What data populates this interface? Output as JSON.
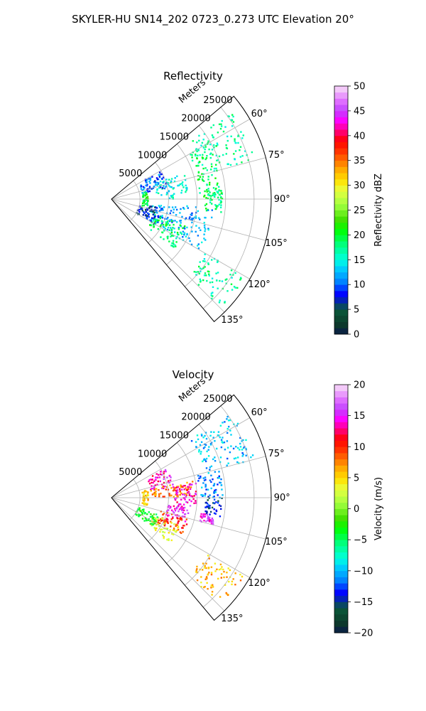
{
  "figure": {
    "suptitle": "SKYLER-HU  SN14_202  0723_0.273 UTC Elevation 20°"
  },
  "chart_data": [
    {
      "type": "polar-sector",
      "title": "Reflectivity",
      "radial_label": "Meters",
      "theta_range_deg": [
        50,
        140
      ],
      "r_range_m": [
        0,
        28000
      ],
      "radial_ticks": [
        5000,
        10000,
        15000,
        20000,
        25000
      ],
      "radial_tick_labels": [
        "5000",
        "10000",
        "15000",
        "20000",
        "25000"
      ],
      "angle_ticks_deg": [
        60,
        75,
        90,
        105,
        120,
        135
      ],
      "angle_tick_labels": [
        "60°",
        "75°",
        "90°",
        "105°",
        "120°",
        "135°"
      ],
      "grid": true,
      "colorbar": {
        "label": "Reflectivity dBZ",
        "range": [
          0,
          50
        ],
        "ticks": [
          0,
          5,
          10,
          15,
          20,
          25,
          30,
          35,
          40,
          45,
          50
        ],
        "tick_labels": [
          "0",
          "5",
          "10",
          "15",
          "20",
          "25",
          "30",
          "35",
          "40",
          "45",
          "50"
        ]
      },
      "echo_regions": [
        {
          "az": [
            54,
            75
          ],
          "r": [
            17000,
            26000
          ],
          "value": 17
        },
        {
          "az": [
            60,
            90
          ],
          "r": [
            15500,
            19500
          ],
          "value": 19
        },
        {
          "az": [
            85,
            98
          ],
          "r": [
            16000,
            19500
          ],
          "value": 18
        },
        {
          "az": [
            70,
            90
          ],
          "r": [
            8000,
            13500
          ],
          "value": 15
        },
        {
          "az": [
            60,
            80
          ],
          "r": [
            5500,
            10000
          ],
          "value": 10
        },
        {
          "az": [
            95,
            120
          ],
          "r": [
            7000,
            18000
          ],
          "value": 12
        },
        {
          "az": [
            110,
            128
          ],
          "r": [
            8000,
            14000
          ],
          "value": 19
        },
        {
          "az": [
            100,
            120
          ],
          "r": [
            5000,
            9000
          ],
          "value": 7
        },
        {
          "az": [
            78,
            102
          ],
          "r": [
            5500,
            6500
          ],
          "value": 20
        },
        {
          "az": [
            120,
            135
          ],
          "r": [
            19000,
            27000
          ],
          "value": 17
        }
      ]
    },
    {
      "type": "polar-sector",
      "title": "Velocity",
      "radial_label": "Meters",
      "theta_range_deg": [
        50,
        140
      ],
      "r_range_m": [
        0,
        28000
      ],
      "radial_ticks": [
        5000,
        10000,
        15000,
        20000,
        25000
      ],
      "radial_tick_labels": [
        "5000",
        "10000",
        "15000",
        "20000",
        "25000"
      ],
      "angle_ticks_deg": [
        60,
        75,
        90,
        105,
        120,
        135
      ],
      "angle_tick_labels": [
        "60°",
        "75°",
        "90°",
        "105°",
        "120°",
        "135°"
      ],
      "grid": true,
      "colorbar": {
        "label": "Velocity (m/s)",
        "range": [
          -20,
          20
        ],
        "ticks": [
          -20,
          -15,
          -10,
          -5,
          0,
          5,
          10,
          15,
          20
        ],
        "tick_labels": [
          "−20",
          "−15",
          "−10",
          "−5",
          "0",
          "5",
          "10",
          "15",
          "20"
        ]
      },
      "echo_regions": [
        {
          "az": [
            54,
            75
          ],
          "r": [
            17000,
            26000
          ],
          "value": -10
        },
        {
          "az": [
            75,
            90
          ],
          "r": [
            15500,
            19500
          ],
          "value": -11
        },
        {
          "az": [
            88,
            100
          ],
          "r": [
            16500,
            19500
          ],
          "value": -14
        },
        {
          "az": [
            100,
            105
          ],
          "r": [
            16000,
            18500
          ],
          "value": 15
        },
        {
          "az": [
            62,
            80
          ],
          "r": [
            7000,
            11000
          ],
          "value": 14
        },
        {
          "az": [
            78,
            90
          ],
          "r": [
            7000,
            14500
          ],
          "value": 8
        },
        {
          "az": [
            80,
            94
          ],
          "r": [
            11000,
            15000
          ],
          "value": 14
        },
        {
          "az": [
            95,
            108
          ],
          "r": [
            10000,
            14000
          ],
          "value": 15
        },
        {
          "az": [
            105,
            118
          ],
          "r": [
            9000,
            14000
          ],
          "value": 10
        },
        {
          "az": [
            112,
            128
          ],
          "r": [
            8000,
            13000
          ],
          "value": 3
        },
        {
          "az": [
            110,
            125
          ],
          "r": [
            5000,
            9000
          ],
          "value": -3
        },
        {
          "az": [
            78,
            102
          ],
          "r": [
            5500,
            6500
          ],
          "value": 5
        },
        {
          "az": [
            120,
            135
          ],
          "r": [
            19000,
            27000
          ],
          "value": 6
        }
      ]
    }
  ]
}
